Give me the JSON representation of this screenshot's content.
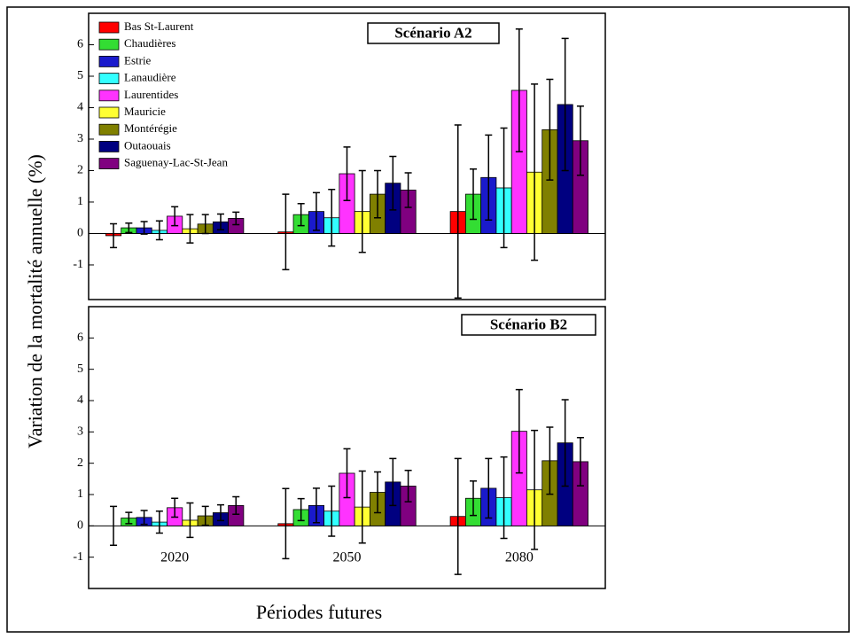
{
  "chart_data": [
    {
      "type": "bar",
      "title": "Scénario A2",
      "categories": [
        null,
        null,
        null
      ],
      "ylim": [
        -2.1,
        7
      ],
      "yticks": [
        -1,
        0,
        1,
        2,
        3,
        4,
        5,
        6
      ],
      "legend": "upper left",
      "series": [
        {
          "name": "Bas St-Laurent",
          "color": "#ff0000",
          "values": [
            -0.07,
            0.05,
            0.7
          ],
          "errors": [
            0.38,
            1.2,
            2.75
          ]
        },
        {
          "name": "Chaudières",
          "color": "#33dd33",
          "values": [
            0.18,
            0.6,
            1.25
          ],
          "errors": [
            0.15,
            0.35,
            0.8
          ]
        },
        {
          "name": "Estrie",
          "color": "#1a1acc",
          "values": [
            0.18,
            0.7,
            1.78
          ],
          "errors": [
            0.2,
            0.6,
            1.35
          ]
        },
        {
          "name": "Lanaudière",
          "color": "#33ffff",
          "values": [
            0.1,
            0.5,
            1.45
          ],
          "errors": [
            0.3,
            0.9,
            1.9
          ]
        },
        {
          "name": "Laurentides",
          "color": "#ff33ff",
          "values": [
            0.55,
            1.9,
            4.55
          ],
          "errors": [
            0.3,
            0.85,
            1.95
          ]
        },
        {
          "name": "Mauricie",
          "color": "#ffff33",
          "values": [
            0.15,
            0.7,
            1.95
          ],
          "errors": [
            0.45,
            1.3,
            2.8
          ]
        },
        {
          "name": "Montérégie",
          "color": "#808000",
          "values": [
            0.3,
            1.25,
            3.3
          ],
          "errors": [
            0.3,
            0.75,
            1.6
          ]
        },
        {
          "name": "Outaouais",
          "color": "#000080",
          "values": [
            0.37,
            1.6,
            4.1
          ],
          "errors": [
            0.25,
            0.85,
            2.1
          ]
        },
        {
          "name": "Saguenay-Lac-St-Jean",
          "color": "#800080",
          "values": [
            0.48,
            1.38,
            2.95
          ],
          "errors": [
            0.2,
            0.55,
            1.1
          ]
        }
      ]
    },
    {
      "type": "bar",
      "title": "Scénario B2",
      "categories": [
        "2020",
        "2050",
        "2080"
      ],
      "ylim": [
        -2,
        7
      ],
      "yticks": [
        -1,
        0,
        1,
        2,
        3,
        4,
        5,
        6
      ],
      "series": [
        {
          "color": "#ff0000",
          "values": [
            0.0,
            0.07,
            0.3
          ],
          "errors": [
            0.62,
            1.12,
            1.85
          ]
        },
        {
          "color": "#33dd33",
          "values": [
            0.25,
            0.52,
            0.88
          ],
          "errors": [
            0.18,
            0.35,
            0.55
          ]
        },
        {
          "color": "#1a1acc",
          "values": [
            0.27,
            0.65,
            1.2
          ],
          "errors": [
            0.22,
            0.55,
            0.95
          ]
        },
        {
          "color": "#33ffff",
          "values": [
            0.12,
            0.47,
            0.9
          ],
          "errors": [
            0.35,
            0.8,
            1.3
          ]
        },
        {
          "color": "#ff33ff",
          "values": [
            0.58,
            1.68,
            3.02
          ],
          "errors": [
            0.3,
            0.78,
            1.33
          ]
        },
        {
          "color": "#ffff33",
          "values": [
            0.18,
            0.6,
            1.15
          ],
          "errors": [
            0.55,
            1.15,
            1.9
          ]
        },
        {
          "color": "#808000",
          "values": [
            0.32,
            1.07,
            2.08
          ],
          "errors": [
            0.3,
            0.65,
            1.07
          ]
        },
        {
          "color": "#000080",
          "values": [
            0.42,
            1.4,
            2.65
          ],
          "errors": [
            0.25,
            0.75,
            1.38
          ]
        },
        {
          "color": "#800080",
          "values": [
            0.65,
            1.27,
            2.05
          ],
          "errors": [
            0.28,
            0.5,
            0.77
          ]
        }
      ]
    }
  ],
  "ylabel": "Variation de la mortalité annuelle (%)",
  "xlabel": "Périodes futures"
}
